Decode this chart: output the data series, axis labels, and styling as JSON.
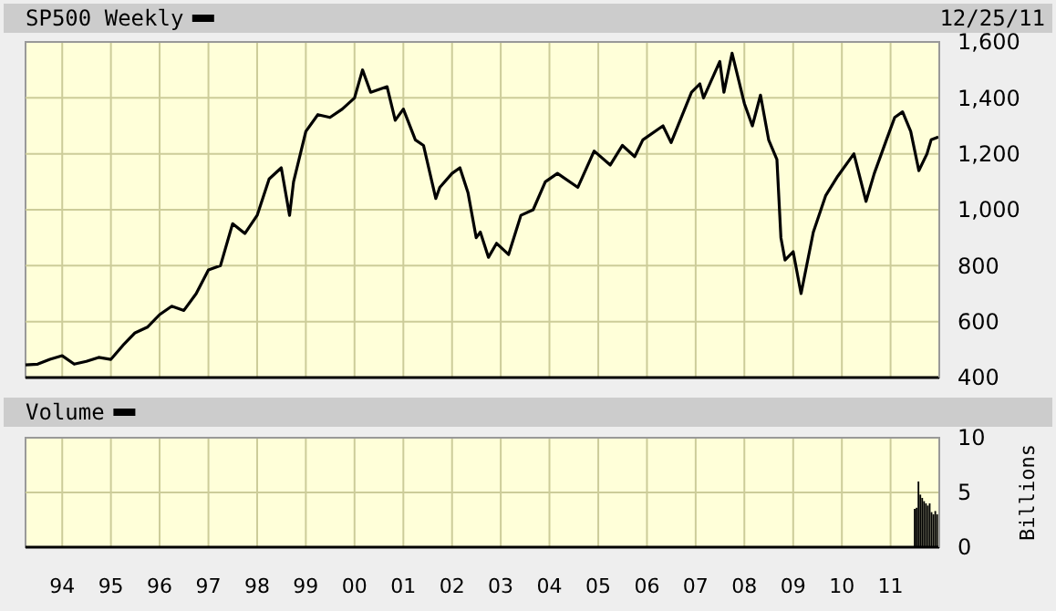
{
  "chart_data": [
    {
      "type": "line",
      "annotations": [
        "12/25/11"
      ],
      "legend": "top left",
      "grid": true,
      "tick_labels": "y",
      "x": [
        "1993-04-01",
        "1993-07-01",
        "1993-10-01",
        "1994-01-01",
        "1994-04-01",
        "1994-07-01",
        "1994-10-01",
        "1995-01-01",
        "1995-04-01",
        "1995-07-01",
        "1995-10-01",
        "1996-01-01",
        "1996-04-01",
        "1996-07-01",
        "1996-10-01",
        "1997-01-01",
        "1997-04-01",
        "1997-07-01",
        "1997-10-01",
        "1998-01-01",
        "1998-04-01",
        "1998-07-01",
        "1998-09-01",
        "1998-10-01",
        "1999-01-01",
        "1999-04-01",
        "1999-07-01",
        "1999-10-01",
        "2000-01-01",
        "2000-03-01",
        "2000-05-01",
        "2000-09-01",
        "2000-11-01",
        "2001-01-01",
        "2001-04-01",
        "2001-06-01",
        "2001-09-01",
        "2001-10-01",
        "2002-01-01",
        "2002-03-01",
        "2002-05-01",
        "2002-07-01",
        "2002-08-01",
        "2002-10-01",
        "2002-12-01",
        "2003-03-01",
        "2003-06-01",
        "2003-09-01",
        "2003-12-01",
        "2004-03-01",
        "2004-08-01",
        "2004-12-01",
        "2005-04-01",
        "2005-07-01",
        "2005-10-01",
        "2005-12-01",
        "2006-05-01",
        "2006-07-01",
        "2006-12-01",
        "2007-02-01",
        "2007-03-01",
        "2007-07-01",
        "2007-08-01",
        "2007-10-01",
        "2008-01-01",
        "2008-03-01",
        "2008-05-01",
        "2008-07-01",
        "2008-09-01",
        "2008-10-01",
        "2008-11-01",
        "2009-01-01",
        "2009-03-01",
        "2009-06-01",
        "2009-09-01",
        "2009-12-01",
        "2010-04-01",
        "2010-07-01",
        "2010-09-01",
        "2010-12-01",
        "2011-02-01",
        "2011-04-01",
        "2011-06-01",
        "2011-08-01",
        "2011-10-01",
        "2011-11-01",
        "2011-12-25"
      ],
      "series": [
        {
          "name": "SP500 Weekly",
          "color": "#000000",
          "values": [
            445,
            448,
            465,
            478,
            448,
            458,
            472,
            465,
            515,
            560,
            580,
            625,
            655,
            640,
            700,
            785,
            800,
            950,
            915,
            980,
            1110,
            1150,
            980,
            1100,
            1280,
            1340,
            1330,
            1360,
            1400,
            1500,
            1420,
            1440,
            1320,
            1360,
            1250,
            1230,
            1040,
            1080,
            1130,
            1150,
            1060,
            900,
            920,
            830,
            880,
            840,
            980,
            1000,
            1100,
            1130,
            1080,
            1210,
            1160,
            1230,
            1190,
            1250,
            1300,
            1240,
            1420,
            1450,
            1400,
            1530,
            1420,
            1560,
            1380,
            1300,
            1410,
            1250,
            1180,
            900,
            820,
            850,
            700,
            920,
            1050,
            1120,
            1200,
            1030,
            1130,
            1250,
            1330,
            1350,
            1280,
            1140,
            1200,
            1250,
            1260
          ]
        }
      ],
      "xlim": [
        "1993-04-01",
        "2012-01-01"
      ],
      "xticks": [
        {
          "value": "1994-01-01",
          "label": null
        },
        {
          "value": "1995-01-01",
          "label": null
        },
        {
          "value": "1996-01-01",
          "label": null
        },
        {
          "value": "1997-01-01",
          "label": null
        },
        {
          "value": "1998-01-01",
          "label": null
        },
        {
          "value": "1999-01-01",
          "label": null
        },
        {
          "value": "2000-01-01",
          "label": null
        },
        {
          "value": "2001-01-01",
          "label": null
        },
        {
          "value": "2002-01-01",
          "label": null
        },
        {
          "value": "2003-01-01",
          "label": null
        },
        {
          "value": "2004-01-01",
          "label": null
        },
        {
          "value": "2005-01-01",
          "label": null
        },
        {
          "value": "2006-01-01",
          "label": null
        },
        {
          "value": "2007-01-01",
          "label": null
        },
        {
          "value": "2008-01-01",
          "label": null
        },
        {
          "value": "2009-01-01",
          "label": null
        },
        {
          "value": "2010-01-01",
          "label": null
        },
        {
          "value": "2011-01-01",
          "label": null
        }
      ],
      "ylim": [
        400,
        1600
      ],
      "yticks": [
        400,
        600,
        800,
        {
          "value": 1000,
          "label": "1,000"
        },
        {
          "value": 1200,
          "label": "1,200"
        },
        {
          "value": 1400,
          "label": "1,400"
        },
        {
          "value": 1600,
          "label": "1,600"
        }
      ]
    },
    {
      "type": "bar",
      "ylabel": "Billions",
      "legend": "top left",
      "grid": true,
      "x": [
        "2011-07-01",
        "2011-07-15",
        "2011-07-29",
        "2011-08-12",
        "2011-08-26",
        "2011-09-09",
        "2011-09-23",
        "2011-10-07",
        "2011-10-21",
        "2011-11-04",
        "2011-11-18",
        "2011-12-02",
        "2011-12-16"
      ],
      "series": [
        {
          "name": "Volume",
          "color": "#000000",
          "values": [
            3.5,
            3.6,
            6,
            4.8,
            4.5,
            4.2,
            4,
            3.8,
            4,
            3.2,
            3,
            3.3,
            3
          ]
        }
      ],
      "xlim": [
        "1993-04-01",
        "2012-01-01"
      ],
      "xticks": [
        {
          "value": "1994-01-01",
          "label": "94"
        },
        {
          "value": "1995-01-01",
          "label": "95"
        },
        {
          "value": "1996-01-01",
          "label": "96"
        },
        {
          "value": "1997-01-01",
          "label": "97"
        },
        {
          "value": "1998-01-01",
          "label": "98"
        },
        {
          "value": "1999-01-01",
          "label": "99"
        },
        {
          "value": "2000-01-01",
          "label": "00"
        },
        {
          "value": "2001-01-01",
          "label": "01"
        },
        {
          "value": "2002-01-01",
          "label": "02"
        },
        {
          "value": "2003-01-01",
          "label": "03"
        },
        {
          "value": "2004-01-01",
          "label": "04"
        },
        {
          "value": "2005-01-01",
          "label": "05"
        },
        {
          "value": "2006-01-01",
          "label": "06"
        },
        {
          "value": "2007-01-01",
          "label": "07"
        },
        {
          "value": "2008-01-01",
          "label": "08"
        },
        {
          "value": "2009-01-01",
          "label": "09"
        },
        {
          "value": "2010-01-01",
          "label": "10"
        },
        {
          "value": "2011-01-01",
          "label": "11"
        }
      ],
      "ylim": [
        0,
        10
      ],
      "yticks": [
        0,
        5,
        10
      ]
    }
  ]
}
